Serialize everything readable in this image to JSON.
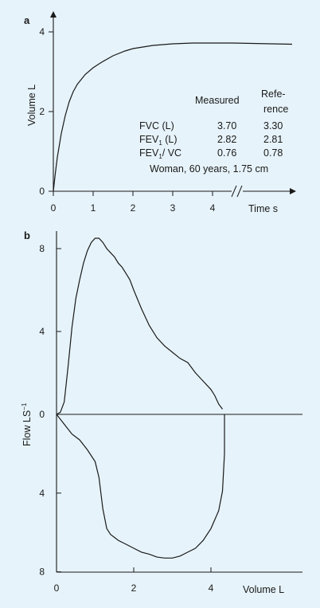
{
  "chart_data": [
    {
      "type": "line",
      "panel_label": "a",
      "xlabel": "Time s",
      "ylabel": "Volume L",
      "xlim": [
        0,
        6
      ],
      "ylim": [
        0,
        4
      ],
      "x_ticks": [
        "0",
        "1",
        "2",
        "3",
        "4"
      ],
      "y_ticks": [
        "0",
        "2",
        "4"
      ],
      "axis_break": true,
      "series": [
        {
          "x": [
            0,
            0.05,
            0.1,
            0.2,
            0.3,
            0.4,
            0.5,
            0.6,
            0.8,
            1.0,
            1.2,
            1.5,
            1.8,
            2.0,
            2.5,
            3.0,
            3.5,
            4.0,
            4.5,
            5.0,
            5.5,
            6.0
          ],
          "y": [
            0,
            0.45,
            0.85,
            1.45,
            1.9,
            2.25,
            2.5,
            2.68,
            2.93,
            3.1,
            3.23,
            3.4,
            3.52,
            3.58,
            3.66,
            3.7,
            3.72,
            3.72,
            3.72,
            3.71,
            3.7,
            3.69
          ]
        }
      ],
      "table": {
        "headers": [
          "",
          "Measured",
          "Refe-\nrence"
        ],
        "header_measured": "Measured",
        "header_reference_1": "Refe-",
        "header_reference_2": "rence",
        "rows": [
          {
            "label": "FVC (L)",
            "label_main": "FVC (L)",
            "label_sub": "",
            "label_rest": "",
            "measured": "3.70",
            "reference": "3.30"
          },
          {
            "label": "FEV1 (L)",
            "label_main": "FEV",
            "label_sub": "1",
            "label_rest": " (L)",
            "measured": "2.82",
            "reference": "2.81"
          },
          {
            "label": "FEV1/ VC",
            "label_main": "FEV",
            "label_sub": "1",
            "label_rest": "/ VC",
            "measured": "0.76",
            "reference": "0.78"
          }
        ],
        "footnote": "Woman, 60 years, 1.75 cm"
      }
    },
    {
      "type": "line",
      "panel_label": "b",
      "xlabel": "Volume L",
      "ylabel": "Flow LS⁻¹",
      "ylabel_main": "Flow LS",
      "ylabel_sup": "−1",
      "xlim": [
        0,
        5.3
      ],
      "ylim": [
        -8,
        9.5
      ],
      "x_ticks": [
        "0",
        "2",
        "4"
      ],
      "y_ticks_upper": [
        "0",
        "4",
        "8"
      ],
      "y_ticks_lower": [
        "4",
        "8"
      ],
      "series": [
        {
          "name_hidden": "expiratory",
          "x": [
            0,
            0.1,
            0.2,
            0.3,
            0.4,
            0.5,
            0.6,
            0.7,
            0.8,
            0.9,
            1.0,
            1.1,
            1.2,
            1.3,
            1.4,
            1.5,
            1.6,
            1.7,
            1.8,
            1.9,
            2.0,
            2.2,
            2.4,
            2.6,
            2.8,
            3.0,
            3.2,
            3.4,
            3.6,
            3.8,
            4.0,
            4.1,
            4.2,
            4.3
          ],
          "y": [
            0,
            0.1,
            0.6,
            2.3,
            4.2,
            5.6,
            6.5,
            7.3,
            7.9,
            8.3,
            8.5,
            8.5,
            8.3,
            8.0,
            7.8,
            7.6,
            7.3,
            7.1,
            6.8,
            6.5,
            6.0,
            5.1,
            4.3,
            3.7,
            3.3,
            3.0,
            2.7,
            2.5,
            2.0,
            1.6,
            1.2,
            0.9,
            0.5,
            0.25
          ]
        },
        {
          "name_hidden": "inspiratory",
          "x": [
            0,
            0.2,
            0.4,
            0.6,
            0.8,
            1.0,
            1.1,
            1.2,
            1.3,
            1.4,
            1.6,
            1.8,
            2.0,
            2.2,
            2.4,
            2.6,
            2.8,
            3.0,
            3.2,
            3.4,
            3.6,
            3.8,
            4.0,
            4.2,
            4.3,
            4.35,
            4.35
          ],
          "y": [
            0,
            -0.5,
            -1.0,
            -1.3,
            -1.8,
            -2.4,
            -3.2,
            -4.8,
            -5.8,
            -6.1,
            -6.4,
            -6.6,
            -6.8,
            -7.0,
            -7.1,
            -7.25,
            -7.3,
            -7.3,
            -7.2,
            -7.0,
            -6.8,
            -6.4,
            -5.8,
            -4.9,
            -3.9,
            -2.0,
            0
          ]
        }
      ]
    }
  ]
}
